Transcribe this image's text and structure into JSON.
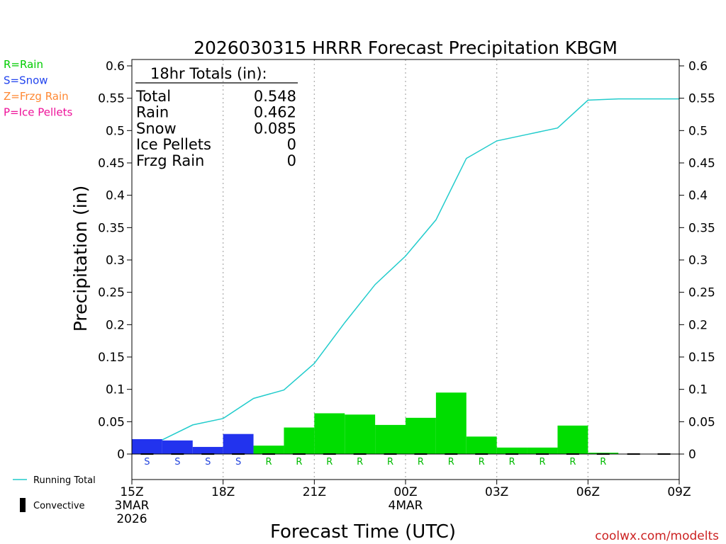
{
  "chart_data": {
    "type": "bar",
    "title": "2026030315 HRRR Forecast Precipitation KBGM",
    "xlabel": "Forecast Time (UTC)",
    "ylabel": "Precipitation (in)",
    "ylim": [
      0,
      0.6
    ],
    "yticks": [
      0,
      0.05,
      0.1,
      0.15,
      0.2,
      0.25,
      0.3,
      0.35,
      0.4,
      0.45,
      0.5,
      0.55,
      0.6
    ],
    "ytick_labels": [
      "0",
      "0.05",
      "0.1",
      "0.15",
      "0.2",
      "0.25",
      "0.3",
      "0.35",
      "0.4",
      "0.45",
      "0.5",
      "0.55",
      "0.6"
    ],
    "xlim_hours": [
      0,
      18
    ],
    "x_ticks": [
      {
        "hour": 0,
        "label": "15Z",
        "date": "3MAR",
        "year": "2026"
      },
      {
        "hour": 3,
        "label": "18Z"
      },
      {
        "hour": 6,
        "label": "21Z"
      },
      {
        "hour": 9,
        "label": "00Z",
        "date": "4MAR"
      },
      {
        "hour": 12,
        "label": "03Z"
      },
      {
        "hour": 15,
        "label": "06Z"
      },
      {
        "hour": 18,
        "label": "09Z"
      }
    ],
    "hourly": [
      {
        "hour": 1,
        "value": 0.023,
        "type": "S"
      },
      {
        "hour": 2,
        "value": 0.021,
        "type": "S"
      },
      {
        "hour": 3,
        "value": 0.011,
        "type": "S"
      },
      {
        "hour": 4,
        "value": 0.031,
        "type": "S"
      },
      {
        "hour": 5,
        "value": 0.013,
        "type": "R"
      },
      {
        "hour": 6,
        "value": 0.041,
        "type": "R"
      },
      {
        "hour": 7,
        "value": 0.063,
        "type": "R"
      },
      {
        "hour": 8,
        "value": 0.061,
        "type": "R"
      },
      {
        "hour": 9,
        "value": 0.045,
        "type": "R"
      },
      {
        "hour": 10,
        "value": 0.056,
        "type": "R"
      },
      {
        "hour": 11,
        "value": 0.095,
        "type": "R"
      },
      {
        "hour": 12,
        "value": 0.027,
        "type": "R"
      },
      {
        "hour": 13,
        "value": 0.01,
        "type": "R"
      },
      {
        "hour": 14,
        "value": 0.01,
        "type": "R"
      },
      {
        "hour": 15,
        "value": 0.044,
        "type": "R"
      },
      {
        "hour": 16,
        "value": 0.002,
        "type": "R"
      }
    ],
    "running_total": [
      {
        "hour": 1,
        "value": 0.022
      },
      {
        "hour": 2,
        "value": 0.045
      },
      {
        "hour": 3,
        "value": 0.055
      },
      {
        "hour": 4,
        "value": 0.086
      },
      {
        "hour": 5,
        "value": 0.099
      },
      {
        "hour": 6,
        "value": 0.14
      },
      {
        "hour": 7,
        "value": 0.203
      },
      {
        "hour": 8,
        "value": 0.262
      },
      {
        "hour": 9,
        "value": 0.306
      },
      {
        "hour": 10,
        "value": 0.362
      },
      {
        "hour": 11,
        "value": 0.457
      },
      {
        "hour": 12,
        "value": 0.484
      },
      {
        "hour": 13,
        "value": 0.494
      },
      {
        "hour": 14,
        "value": 0.504
      },
      {
        "hour": 15,
        "value": 0.547
      },
      {
        "hour": 16,
        "value": 0.549
      },
      {
        "hour": 17,
        "value": 0.549
      },
      {
        "hour": 18,
        "value": 0.549
      }
    ],
    "totals": {
      "heading": "18hr Totals (in):",
      "rows": [
        {
          "label": "Total",
          "value": "0.548"
        },
        {
          "label": "Rain",
          "value": "0.462"
        },
        {
          "label": "Snow",
          "value": "0.085"
        },
        {
          "label": "Ice Pellets",
          "value": "0"
        },
        {
          "label": "Frzg Rain",
          "value": "0"
        }
      ]
    },
    "type_legend": [
      {
        "label": "R=Rain",
        "color": "#00cc00"
      },
      {
        "label": "S=Snow",
        "color": "#2244ee"
      },
      {
        "label": "Z=Frzg Rain",
        "color": "#ff8833"
      },
      {
        "label": "P=Ice Pellets",
        "color": "#ee1199"
      }
    ],
    "series_legend": [
      {
        "label": "Running Total",
        "color": "#22cccc"
      },
      {
        "label": "Convective",
        "color": "#000000"
      }
    ],
    "colors": {
      "R": "#00dd00",
      "S": "#2233ee",
      "R_text": "#00bb00",
      "S_text": "#2244dd",
      "line": "#22cccc"
    }
  },
  "footer": {
    "credit": "coolwx.com/modelts",
    "credit_color": "#cc2222"
  }
}
